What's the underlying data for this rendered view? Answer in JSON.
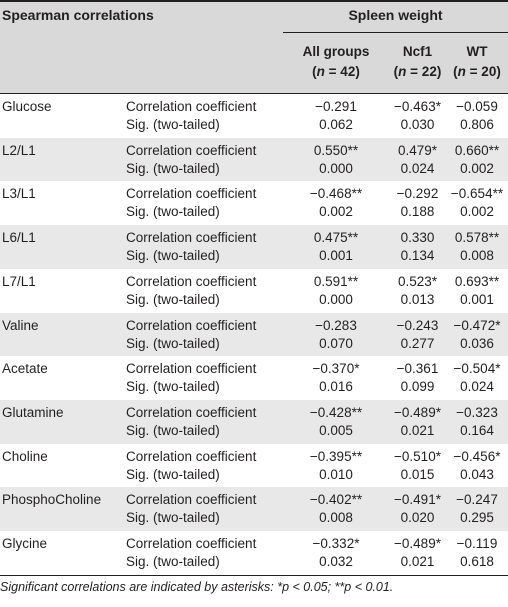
{
  "table": {
    "title": "Spearman correlations",
    "group_header": "Spleen weight",
    "columns": [
      {
        "name": "All groups",
        "n_label": "n",
        "n_value": "= 42"
      },
      {
        "name": "Ncf1",
        "n_label": "n",
        "n_value": "= 22"
      },
      {
        "name": "WT",
        "n_label": "n",
        "n_value": "= 20"
      }
    ],
    "rows": [
      {
        "metabolite": "Glucose",
        "corr_label": "Correlation coefficient",
        "sig_label": "Sig. (two-tailed)",
        "corr": [
          "−0.291",
          "−0.463*",
          "−0.059"
        ],
        "sig": [
          "0.062",
          "0.030",
          "0.806"
        ]
      },
      {
        "metabolite": "L2/L1",
        "corr_label": "Correlation coefficient",
        "sig_label": "Sig. (two-tailed)",
        "corr": [
          "0.550**",
          "0.479*",
          "0.660**"
        ],
        "sig": [
          "0.000",
          "0.024",
          "0.002"
        ]
      },
      {
        "metabolite": "L3/L1",
        "corr_label": "Correlation coefficient",
        "sig_label": "Sig. (two-tailed)",
        "corr": [
          "−0.468**",
          "−0.292",
          "−0.654**"
        ],
        "sig": [
          "0.002",
          "0.188",
          "0.002"
        ]
      },
      {
        "metabolite": "L6/L1",
        "corr_label": "Correlation coefficient",
        "sig_label": "Sig. (two-tailed)",
        "corr": [
          "0.475**",
          "0.330",
          "0.578**"
        ],
        "sig": [
          "0.001",
          "0.134",
          "0.008"
        ]
      },
      {
        "metabolite": "L7/L1",
        "corr_label": "Correlation coefficient",
        "sig_label": "Sig. (two-tailed)",
        "corr": [
          "0.591**",
          "0.523*",
          "0.693**"
        ],
        "sig": [
          "0.000",
          "0.013",
          "0.001"
        ]
      },
      {
        "metabolite": "Valine",
        "corr_label": "Correlation coefficient",
        "sig_label": "Sig. (two-tailed)",
        "corr": [
          "−0.283",
          "−0.243",
          "−0.472*"
        ],
        "sig": [
          "0.070",
          "0.277",
          "0.036"
        ]
      },
      {
        "metabolite": "Acetate",
        "corr_label": "Correlation coefficient",
        "sig_label": "Sig. (two-tailed)",
        "corr": [
          "−0.370*",
          "−0.361",
          "−0.504*"
        ],
        "sig": [
          "0.016",
          "0.099",
          "0.024"
        ]
      },
      {
        "metabolite": "Glutamine",
        "corr_label": "Correlation coefficient",
        "sig_label": "Sig. (two-tailed)",
        "corr": [
          "−0.428**",
          "−0.489*",
          "−0.323"
        ],
        "sig": [
          "0.005",
          "0.021",
          "0.164"
        ]
      },
      {
        "metabolite": "Choline",
        "corr_label": "Correlation coefficient",
        "sig_label": "Sig. (two-tailed)",
        "corr": [
          "−0.395**",
          "−0.510*",
          "−0.456*"
        ],
        "sig": [
          "0.010",
          "0.015",
          "0.043"
        ]
      },
      {
        "metabolite": "PhosphoCholine",
        "corr_label": "Correlation coefficient",
        "sig_label": "Sig. (two-tailed)",
        "corr": [
          "−0.402**",
          "−0.491*",
          "−0.247"
        ],
        "sig": [
          "0.008",
          "0.020",
          "0.295"
        ]
      },
      {
        "metabolite": "Glycine",
        "corr_label": "Correlation coefficient",
        "sig_label": "Sig. (two-tailed)",
        "corr": [
          "−0.332*",
          "−0.489*",
          "−0.119"
        ],
        "sig": [
          "0.032",
          "0.021",
          "0.618"
        ]
      }
    ],
    "footnote": "Significant correlations are indicated by asterisks: *p < 0.05; **p < 0.01."
  },
  "colors": {
    "header_band": "#d9d9d9",
    "row_band": "#e8e8e8",
    "rule": "#231f20",
    "text": "#231f20"
  }
}
